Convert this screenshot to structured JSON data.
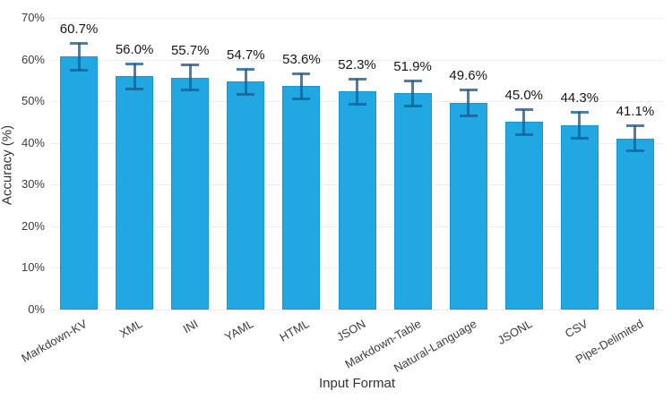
{
  "chart_data": {
    "type": "bar",
    "title": "",
    "xlabel": "Input Format",
    "ylabel": "Accuracy (%)",
    "categories": [
      "Markdown-KV",
      "XML",
      "INI",
      "YAML",
      "HTML",
      "JSON",
      "Markdown-Table",
      "Natural-Language",
      "JSONL",
      "CSV",
      "Pipe-Delimited"
    ],
    "values": [
      60.7,
      56.0,
      55.7,
      54.7,
      53.6,
      52.3,
      51.9,
      49.6,
      45.0,
      44.3,
      41.1
    ],
    "errors": [
      3.3,
      3.1,
      3.1,
      3.1,
      3.1,
      3.2,
      3.1,
      3.3,
      3.2,
      3.2,
      3.1
    ],
    "value_labels": [
      "60.7%",
      "56.0%",
      "55.7%",
      "54.7%",
      "53.6%",
      "52.3%",
      "51.9%",
      "49.6%",
      "45.0%",
      "44.3%",
      "41.1%"
    ],
    "ytick_labels": [
      "0%",
      "10%",
      "20%",
      "30%",
      "40%",
      "50%",
      "60%",
      "70%"
    ],
    "ylim": [
      0,
      70
    ],
    "ytick_step": 10,
    "grid": true,
    "legend": "none",
    "colors": {
      "bar_fill": "#21a7e1",
      "bar_border": "#1897d4",
      "error_bar": "#1a5f96",
      "gridline": "#ececec",
      "tick_text": "#3b3b3b",
      "value_text": "#161616",
      "axis_title_text": "#333333",
      "background": "#ffffff"
    }
  }
}
